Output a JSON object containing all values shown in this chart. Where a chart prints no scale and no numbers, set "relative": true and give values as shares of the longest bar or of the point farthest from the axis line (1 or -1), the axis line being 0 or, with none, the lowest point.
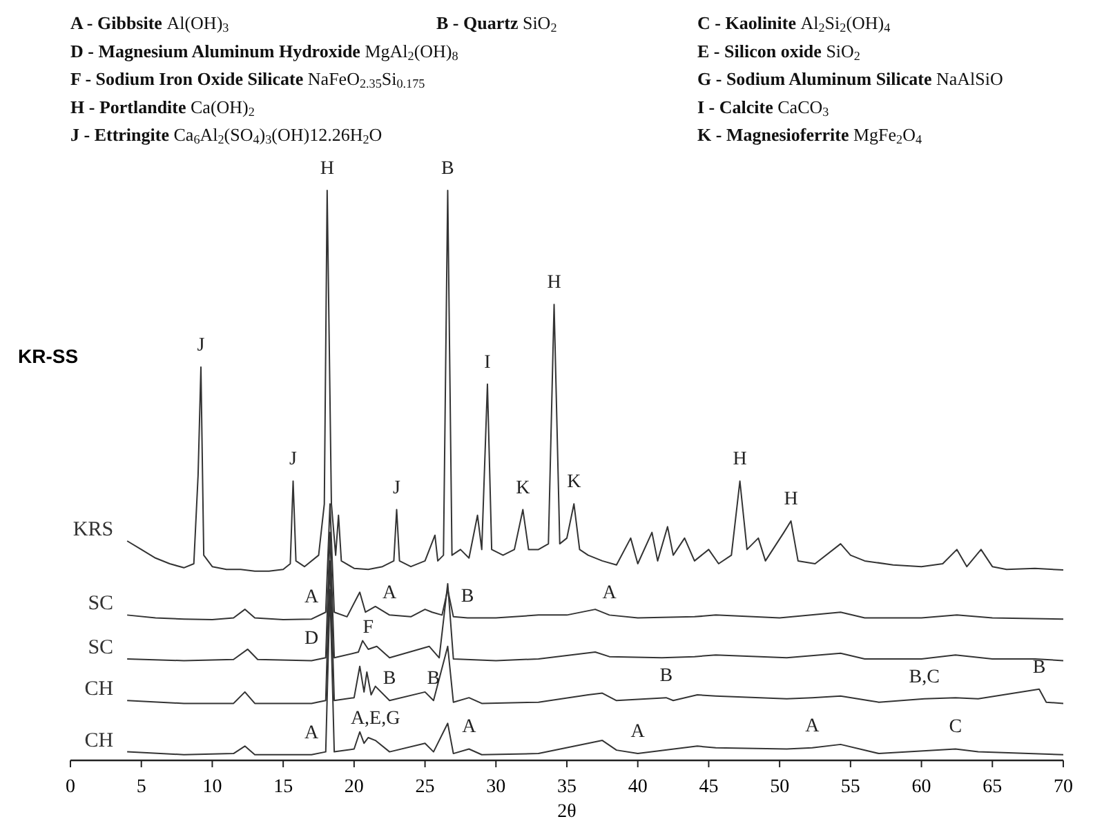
{
  "chart_data": {
    "type": "line",
    "relative": true,
    "xlabel": "2θ",
    "xlim": [
      0,
      70
    ],
    "xticks": [
      0,
      5,
      10,
      15,
      20,
      25,
      30,
      35,
      40,
      45,
      50,
      55,
      60,
      65,
      70
    ],
    "grid": false,
    "legend": false,
    "marker": "none",
    "line_style": "solid",
    "series": [
      {
        "name": "KRS",
        "color": "#333333",
        "x": [
          4,
          5,
          6,
          7,
          8,
          8.7,
          9.0,
          9.2,
          9.4,
          10,
          11,
          12,
          13,
          14,
          15,
          15.5,
          15.7,
          15.9,
          16.5,
          17.5,
          17.9,
          18.1,
          18.4,
          18.7,
          18.9,
          19.1,
          20,
          21,
          22,
          22.8,
          23.0,
          23.2,
          24,
          25,
          25.7,
          25.9,
          26.3,
          26.6,
          26.9,
          27.5,
          28.1,
          28.7,
          29.0,
          29.4,
          29.7,
          30.5,
          31.3,
          31.9,
          32.3,
          33,
          33.7,
          34.1,
          34.5,
          35.0,
          35.5,
          35.9,
          36.5,
          37.5,
          38.5,
          39.5,
          40,
          41,
          41.4,
          42.1,
          42.5,
          43.3,
          44,
          45,
          45.7,
          46.6,
          47.2,
          47.7,
          48.5,
          49,
          50.3,
          50.8,
          51.3,
          52.5,
          54.3,
          55,
          56,
          58,
          60,
          61.5,
          62.5,
          63.2,
          64.2,
          65,
          66,
          68,
          70
        ],
        "values": [
          0.385,
          0.37,
          0.355,
          0.345,
          0.338,
          0.345,
          0.5,
          0.69,
          0.36,
          0.34,
          0.335,
          0.335,
          0.332,
          0.332,
          0.335,
          0.345,
          0.49,
          0.35,
          0.34,
          0.36,
          0.45,
          1.0,
          0.45,
          0.36,
          0.43,
          0.35,
          0.337,
          0.335,
          0.34,
          0.35,
          0.44,
          0.35,
          0.34,
          0.35,
          0.395,
          0.35,
          0.36,
          1.0,
          0.36,
          0.37,
          0.355,
          0.43,
          0.37,
          0.66,
          0.37,
          0.36,
          0.37,
          0.44,
          0.37,
          0.37,
          0.38,
          0.8,
          0.38,
          0.39,
          0.45,
          0.37,
          0.36,
          0.35,
          0.343,
          0.39,
          0.345,
          0.4,
          0.35,
          0.41,
          0.36,
          0.39,
          0.35,
          0.37,
          0.345,
          0.36,
          0.49,
          0.37,
          0.39,
          0.35,
          0.4,
          0.42,
          0.35,
          0.345,
          0.38,
          0.36,
          0.35,
          0.343,
          0.34,
          0.345,
          0.37,
          0.34,
          0.37,
          0.34,
          0.335,
          0.337,
          0.334
        ]
      },
      {
        "name": "SC",
        "color": "#333333",
        "x": [
          4,
          6,
          8,
          10,
          11.5,
          12.3,
          13,
          15,
          17,
          18.0,
          18.3,
          18.6,
          19.5,
          20.4,
          20.8,
          21.5,
          22.5,
          24,
          25.0,
          25.5,
          26.2,
          26.6,
          27.0,
          28,
          30,
          33,
          35,
          37,
          38,
          40,
          44,
          45.5,
          50,
          54.3,
          56,
          60,
          62.5,
          65,
          70
        ],
        "values": [
          0.255,
          0.25,
          0.248,
          0.247,
          0.25,
          0.265,
          0.25,
          0.247,
          0.248,
          0.26,
          0.45,
          0.26,
          0.252,
          0.295,
          0.26,
          0.27,
          0.255,
          0.252,
          0.265,
          0.26,
          0.255,
          0.3,
          0.252,
          0.25,
          0.25,
          0.255,
          0.255,
          0.265,
          0.255,
          0.25,
          0.252,
          0.255,
          0.25,
          0.26,
          0.25,
          0.25,
          0.255,
          0.25,
          0.248
        ]
      },
      {
        "name": "SC",
        "color": "#333333",
        "x": [
          4,
          8,
          11.5,
          12.5,
          13.2,
          17,
          18.0,
          18.3,
          18.6,
          20.3,
          20.6,
          21.0,
          21.6,
          22.5,
          25.3,
          26.0,
          26.6,
          27.0,
          30,
          33,
          37,
          38,
          41.7,
          44,
          45.5,
          50.5,
          54.3,
          56,
          60,
          62.4,
          65,
          68,
          70
        ],
        "values": [
          0.178,
          0.175,
          0.177,
          0.195,
          0.177,
          0.175,
          0.18,
          0.4,
          0.18,
          0.19,
          0.21,
          0.195,
          0.2,
          0.18,
          0.2,
          0.18,
          0.31,
          0.178,
          0.175,
          0.178,
          0.19,
          0.182,
          0.18,
          0.182,
          0.185,
          0.18,
          0.188,
          0.178,
          0.178,
          0.185,
          0.178,
          0.178,
          0.175
        ]
      },
      {
        "name": "CH",
        "color": "#333333",
        "x": [
          4,
          8,
          11.5,
          12.3,
          13,
          17,
          18.0,
          18.3,
          18.6,
          20.0,
          20.4,
          20.7,
          20.9,
          21.2,
          21.5,
          22.5,
          25.0,
          25.6,
          26.6,
          27,
          28.1,
          29,
          33,
          36.5,
          37.5,
          38.5,
          42,
          42.5,
          44.2,
          45.5,
          50.5,
          52.3,
          54.3,
          57,
          60.2,
          62.4,
          64,
          68.3,
          68.8,
          70
        ],
        "values": [
          0.105,
          0.1,
          0.1,
          0.12,
          0.1,
          0.1,
          0.105,
          0.35,
          0.105,
          0.11,
          0.165,
          0.12,
          0.155,
          0.115,
          0.13,
          0.105,
          0.12,
          0.105,
          0.2,
          0.102,
          0.11,
          0.1,
          0.102,
          0.115,
          0.118,
          0.105,
          0.11,
          0.105,
          0.115,
          0.113,
          0.108,
          0.11,
          0.113,
          0.102,
          0.108,
          0.11,
          0.108,
          0.125,
          0.102,
          0.1
        ]
      },
      {
        "name": "CH",
        "color": "#333333",
        "x": [
          4,
          8,
          11.5,
          12.3,
          13,
          17,
          18.0,
          18.3,
          18.6,
          20.0,
          20.4,
          20.7,
          21.0,
          21.5,
          22.5,
          25.0,
          25.6,
          26.6,
          27,
          28.1,
          29,
          33,
          36.5,
          37.5,
          38.5,
          40,
          44.2,
          45.5,
          50.5,
          52.3,
          54.3,
          57,
          62.4,
          64,
          70
        ],
        "values": [
          0.015,
          0.01,
          0.012,
          0.025,
          0.01,
          0.01,
          0.015,
          0.3,
          0.015,
          0.02,
          0.05,
          0.03,
          0.04,
          0.035,
          0.015,
          0.03,
          0.015,
          0.065,
          0.012,
          0.02,
          0.01,
          0.012,
          0.03,
          0.035,
          0.018,
          0.012,
          0.025,
          0.022,
          0.02,
          0.022,
          0.028,
          0.012,
          0.02,
          0.015,
          0.01
        ]
      }
    ],
    "annotations": [
      "A - Gibbsite Al(OH)$_{3}$",
      "B - Quartz SiO$_{2}$",
      "C - Kaolinite Al$_{2}$Si$_{2}$(OH)$_{4}$",
      "D - Magnesium Aluminum Hydroxide MgAl$_{2}$(OH)$_{8}$",
      "E - Silicon oxide SiO$_{2}$",
      "F - Sodium Iron Oxide Silicate NaFeO$_{2.35}$Si$_{0.175}$",
      "G - Sodium Aluminum Silicate NaAlSiO",
      "H - Portlandite Ca(OH)$_{2}$",
      "I - Calcite CaCO$_{3}$",
      "J - Ettringite Ca$_{6}$Al$_{2}$(SO$_{4}$)$_{3}$(OH)12.26H$_{2}$O",
      "K - Magnesioferrite MgFe$_{2}$O$_{4}$",
      "KR-SS",
      {
        "text": "J",
        "x": 9.2,
        "y": 0.69
      },
      {
        "text": "J",
        "x": 15.7,
        "y": 0.49
      },
      {
        "text": "H",
        "x": 18.1,
        "y": 1.0
      },
      {
        "text": "J",
        "x": 23.0,
        "y": 0.44
      },
      {
        "text": "B",
        "x": 26.6,
        "y": 1.0
      },
      {
        "text": "I",
        "x": 29.4,
        "y": 0.66
      },
      {
        "text": "K",
        "x": 31.9,
        "y": 0.44
      },
      {
        "text": "H",
        "x": 34.1,
        "y": 0.8
      },
      {
        "text": "K",
        "x": 35.5,
        "y": 0.45
      },
      {
        "text": "H",
        "x": 47.2,
        "y": 0.49
      },
      {
        "text": "H",
        "x": 50.8,
        "y": 0.42
      },
      {
        "text": "A",
        "x": 17,
        "y": 0.248
      },
      {
        "text": "A",
        "x": 22.5,
        "y": 0.255
      },
      {
        "text": "B",
        "x": 28,
        "y": 0.25
      },
      {
        "text": "A",
        "x": 38,
        "y": 0.255
      },
      {
        "text": "D",
        "x": 17,
        "y": 0.175
      },
      {
        "text": "F",
        "x": 21.0,
        "y": 0.195
      },
      {
        "text": "B",
        "x": 22.5,
        "y": 0.105
      },
      {
        "text": "B",
        "x": 25.6,
        "y": 0.105
      },
      {
        "text": "B",
        "x": 42,
        "y": 0.11
      },
      {
        "text": "B,C",
        "x": 60.2,
        "y": 0.108
      },
      {
        "text": "B",
        "x": 68.3,
        "y": 0.125
      },
      {
        "text": "A,E,G",
        "x": 21.5,
        "y": 0.035
      },
      {
        "text": "A",
        "x": 17,
        "y": 0.01
      },
      {
        "text": "A",
        "x": 28.1,
        "y": 0.02
      },
      {
        "text": "A",
        "x": 40,
        "y": 0.012
      },
      {
        "text": "A",
        "x": 52.3,
        "y": 0.022
      },
      {
        "text": "C",
        "x": 62.4,
        "y": 0.02
      }
    ]
  }
}
